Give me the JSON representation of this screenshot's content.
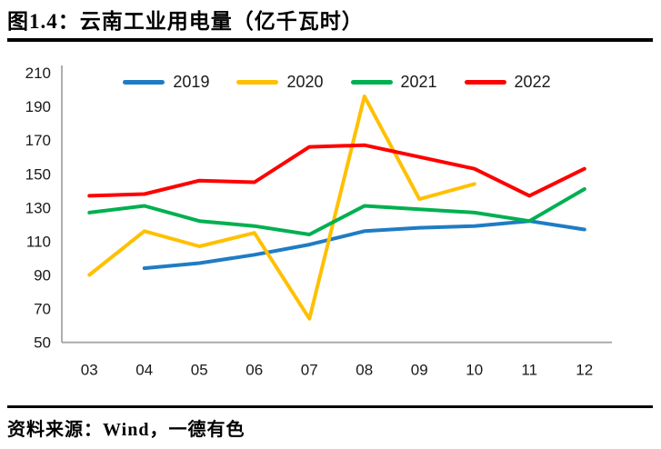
{
  "title": "图1.4：云南工业用电量（亿千瓦时）",
  "source": "资料来源：Wind，一德有色",
  "chart_data": {
    "type": "line",
    "title": "图1.4：云南工业用电量（亿千瓦时）",
    "xlabel": "",
    "ylabel": "",
    "categories": [
      "03",
      "04",
      "05",
      "06",
      "07",
      "08",
      "09",
      "10",
      "11",
      "12"
    ],
    "series": [
      {
        "name": "2019",
        "color": "#1F7CC4",
        "values": [
          null,
          94,
          97,
          102,
          108,
          116,
          118,
          119,
          122,
          117
        ]
      },
      {
        "name": "2020",
        "color": "#FFC000",
        "values": [
          90,
          116,
          107,
          115,
          64,
          196,
          135,
          144,
          null,
          null
        ]
      },
      {
        "name": "2021",
        "color": "#00B050",
        "values": [
          127,
          131,
          122,
          119,
          114,
          131,
          129,
          127,
          122,
          141
        ]
      },
      {
        "name": "2022",
        "color": "#FF0000",
        "values": [
          137,
          138,
          146,
          145,
          166,
          167,
          160,
          153,
          137,
          153
        ]
      }
    ],
    "ylim": [
      50,
      210
    ],
    "ytick_step": 20,
    "grid": false,
    "legend_position": "top-center",
    "axis_color": "#A6A6A6",
    "line_width": 4
  }
}
